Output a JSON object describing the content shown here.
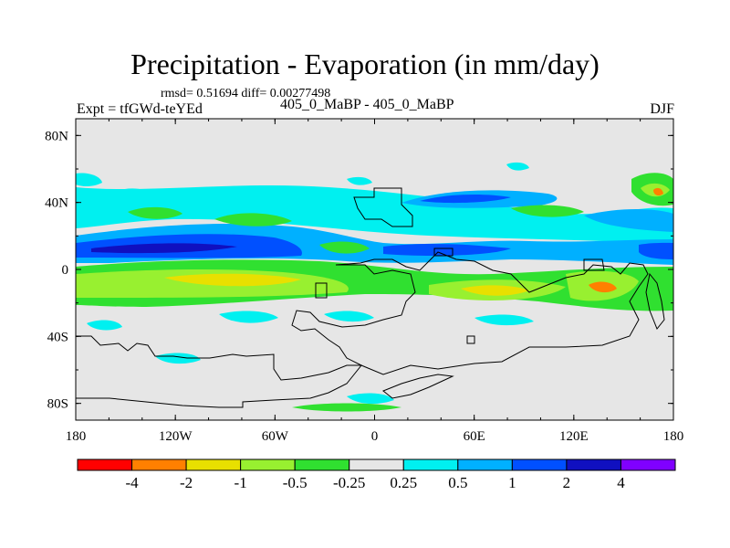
{
  "chart_data": {
    "type": "heatmap",
    "title": "Precipitation - Evaporation (in mm/day)",
    "stats": "rmsd= 0.51694  diff= 0.00277498",
    "subtitle": "405_0_MaBP - 405_0_MaBP",
    "experiment": "Expt = tfGWd-teYEd",
    "season": "DJF",
    "x_ticks": [
      "180",
      "120W",
      "60W",
      "0",
      "60E",
      "120E",
      "180"
    ],
    "y_ticks": [
      "80N",
      "40N",
      "0",
      "40S",
      "80S"
    ],
    "xlim": [
      -180,
      180
    ],
    "ylim": [
      -90,
      90
    ],
    "colorbar": {
      "labels": [
        "-4",
        "-2",
        "-1",
        "-0.5",
        "-0.25",
        "0.25",
        "0.5",
        "1",
        "2",
        "4"
      ],
      "colors": [
        "#ff0000",
        "#ff8000",
        "#e8e000",
        "#98f030",
        "#30e030",
        "#e6e6e6",
        "#00f0f0",
        "#00b0ff",
        "#0050ff",
        "#1010c0",
        "#8000ff"
      ]
    }
  }
}
